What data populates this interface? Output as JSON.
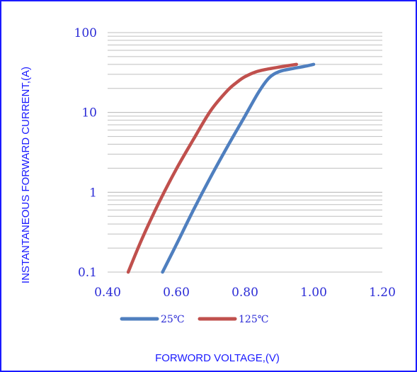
{
  "chart_data": {
    "type": "line",
    "title": "",
    "xlabel": "FORWORD VOLTAGE,(V)",
    "ylabel": "INSTANTANEOUS FORWARD CURRENT,(A)",
    "xlim": [
      0.4,
      1.2
    ],
    "ylim": [
      0.1,
      100
    ],
    "yscale": "log",
    "grid": true,
    "legend": "bottom",
    "x_ticks": [
      "0.40",
      "0.60",
      "0.80",
      "1.00",
      "1.20"
    ],
    "y_ticks": [
      "0.1",
      "1",
      "10",
      "100"
    ],
    "colors": {
      "s25": "#4f7fbf",
      "s125": "#c0504d",
      "grid": "#bfbfbf",
      "text": "#2b2bd6"
    },
    "series": [
      {
        "name": "25℃",
        "x": [
          0.56,
          0.6,
          0.65,
          0.7,
          0.75,
          0.8,
          0.84,
          0.87,
          0.9,
          0.94,
          0.97,
          1.0
        ],
        "y": [
          0.1,
          0.22,
          0.6,
          1.55,
          3.8,
          9.0,
          18.0,
          27.0,
          32.5,
          35.5,
          37.5,
          40.0
        ]
      },
      {
        "name": "125℃",
        "x": [
          0.46,
          0.5,
          0.55,
          0.6,
          0.65,
          0.7,
          0.75,
          0.78,
          0.8,
          0.83,
          0.86,
          0.9,
          0.95
        ],
        "y": [
          0.1,
          0.26,
          0.75,
          1.95,
          4.6,
          10.5,
          19.0,
          24.5,
          28.0,
          32.0,
          34.5,
          37.0,
          40.0
        ]
      }
    ]
  }
}
